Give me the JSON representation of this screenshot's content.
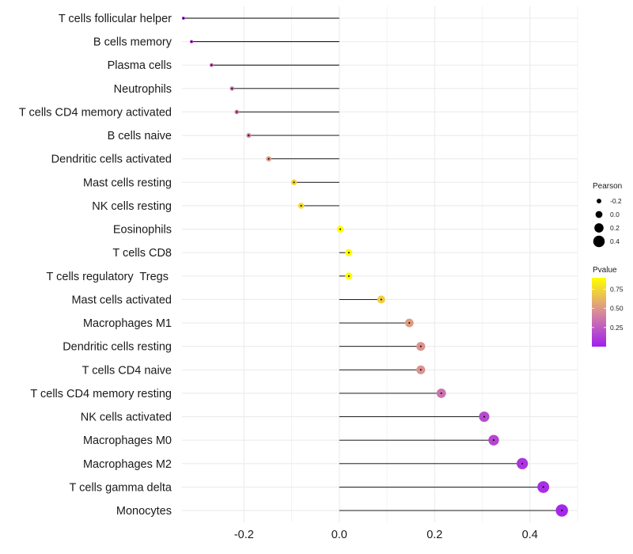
{
  "chart_data": {
    "type": "lollipop",
    "title": "",
    "xlabel": "",
    "ylabel": "",
    "xlim": [
      -0.33,
      0.5
    ],
    "x_ticks": [
      -0.2,
      0.0,
      0.2,
      0.4
    ],
    "x_tick_labels": [
      "-0.2",
      "0.0",
      "0.2",
      "0.4"
    ],
    "grid": true,
    "categories": [
      "T cells follicular helper",
      "B cells memory",
      "Plasma cells",
      "Neutrophils",
      "T cells CD4 memory activated",
      "B cells naive",
      "Dendritic cells activated",
      "Mast cells resting",
      "NK cells resting",
      "Eosinophils",
      "T cells CD8",
      "T cells regulatory  Tregs ",
      "Mast cells activated",
      "Macrophages M1",
      "Dendritic cells resting",
      "T cells CD4 naive",
      "T cells CD4 memory resting",
      "NK cells activated",
      "Macrophages M0",
      "Macrophages M2",
      "T cells gamma delta",
      "Monocytes"
    ],
    "pearson": [
      -0.327,
      -0.31,
      -0.268,
      -0.225,
      -0.215,
      -0.19,
      -0.148,
      -0.095,
      -0.08,
      0.002,
      0.02,
      0.02,
      0.088,
      0.147,
      0.171,
      0.171,
      0.214,
      0.304,
      0.324,
      0.384,
      0.428,
      0.467
    ],
    "pvalue": [
      0.08,
      0.14,
      0.3,
      0.35,
      0.37,
      0.4,
      0.52,
      0.74,
      0.77,
      0.98,
      0.94,
      0.94,
      0.71,
      0.52,
      0.48,
      0.48,
      0.35,
      0.18,
      0.16,
      0.09,
      0.06,
      0.03
    ],
    "legend": {
      "size_title": "Pearson",
      "size_values": [
        -0.2,
        0.0,
        0.2,
        0.4
      ],
      "size_labels": [
        "-0.2",
        "0.0",
        "0.2",
        "0.4"
      ],
      "color_title": "Pvalue",
      "color_breaks": [
        0.25,
        0.5,
        0.75
      ],
      "color_labels": [
        "0.25",
        "0.50",
        "0.75"
      ],
      "color_range": [
        0.0,
        0.9
      ],
      "placement": "right"
    },
    "colors": {
      "low": "#a020f0",
      "mid": "#d88a9a",
      "high": "#ffff00",
      "segment": "#000000",
      "grid": "#ebebeb"
    }
  }
}
